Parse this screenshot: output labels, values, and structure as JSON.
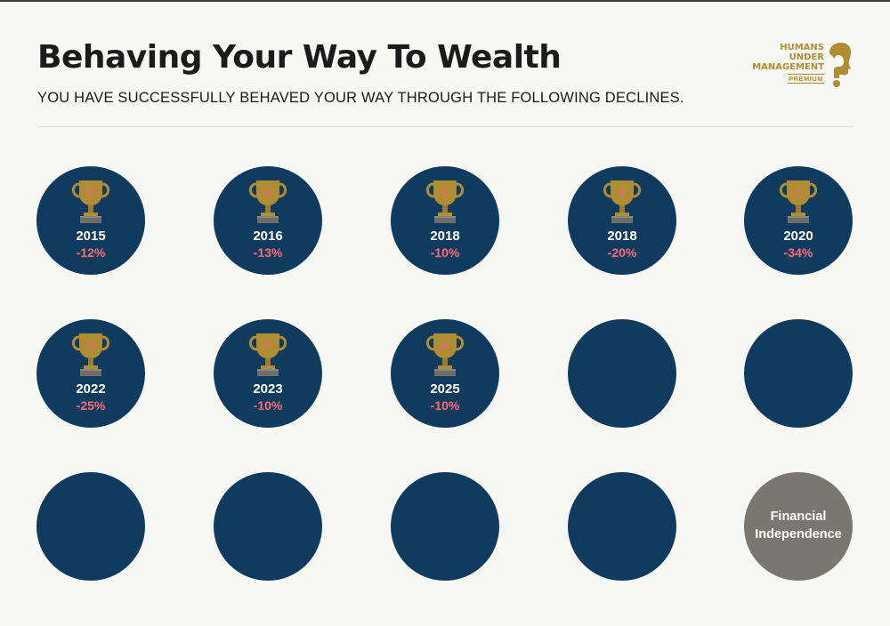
{
  "header": {
    "title": "Behaving Your Way To Wealth",
    "subtitle": "YOU HAVE SUCCESSFULLY BEHAVED YOUR WAY THROUGH THE FOLLOWING DECLINES."
  },
  "logo": {
    "lines": [
      "HUMANS",
      "UNDER",
      "MANAGEMENT"
    ],
    "tier": "PREMIUM",
    "icon": "question-mark-head-icon",
    "color": "#b08d32"
  },
  "colors": {
    "circle": "#0f3b5f",
    "circle_final": "#7a7670",
    "decline": "#ff6b72",
    "trophy": "#b08d32"
  },
  "badges": [
    {
      "year": "2015",
      "decline": "-12%",
      "earned": true
    },
    {
      "year": "2016",
      "decline": "-13%",
      "earned": true
    },
    {
      "year": "2018",
      "decline": "-10%",
      "earned": true
    },
    {
      "year": "2018",
      "decline": "-20%",
      "earned": true
    },
    {
      "year": "2020",
      "decline": "-34%",
      "earned": true
    },
    {
      "year": "2022",
      "decline": "-25%",
      "earned": true
    },
    {
      "year": "2023",
      "decline": "-10%",
      "earned": true
    },
    {
      "year": "2025",
      "decline": "-10%",
      "earned": true
    },
    {
      "earned": false
    },
    {
      "earned": false
    },
    {
      "earned": false
    },
    {
      "earned": false
    },
    {
      "earned": false
    },
    {
      "earned": false
    }
  ],
  "final": {
    "line1": "Financial",
    "line2": "Independence"
  }
}
